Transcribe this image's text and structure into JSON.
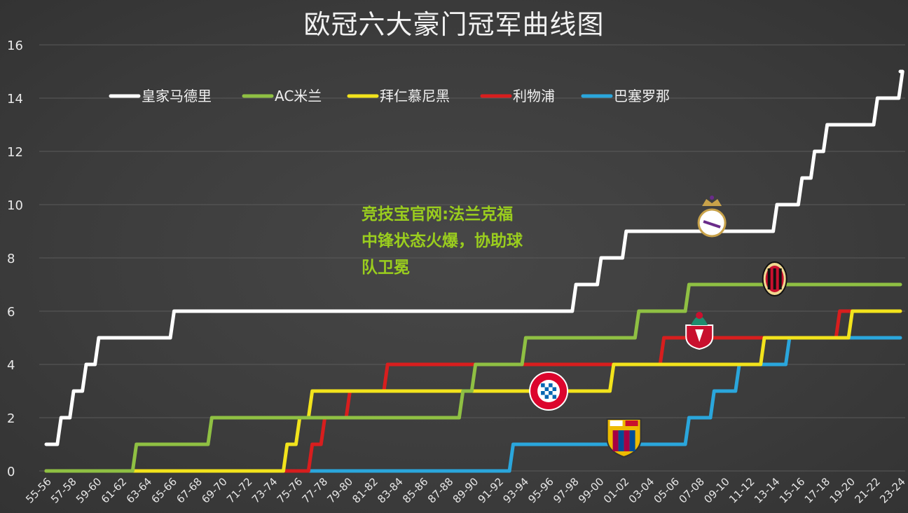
{
  "chart_data": {
    "type": "line",
    "title": "欧冠六大豪门冠军曲线图",
    "xlabel": "",
    "ylabel": "",
    "ylim": [
      0,
      16
    ],
    "yticks": [
      0,
      2,
      4,
      6,
      8,
      10,
      12,
      14,
      16
    ],
    "grid": true,
    "legend_position": "top-left",
    "x": [
      "55-56",
      "56-57",
      "57-58",
      "58-59",
      "59-60",
      "60-61",
      "61-62",
      "62-63",
      "63-64",
      "64-65",
      "65-66",
      "66-67",
      "67-68",
      "68-69",
      "69-70",
      "70-71",
      "71-72",
      "72-73",
      "73-74",
      "74-75",
      "75-76",
      "76-77",
      "77-78",
      "78-79",
      "79-80",
      "80-81",
      "81-82",
      "82-83",
      "83-84",
      "84-85",
      "85-86",
      "86-87",
      "87-88",
      "88-89",
      "89-90",
      "90-91",
      "91-92",
      "92-93",
      "93-94",
      "94-95",
      "95-96",
      "96-97",
      "97-98",
      "98-99",
      "99-00",
      "00-01",
      "01-02",
      "02-03",
      "03-04",
      "04-05",
      "05-06",
      "06-07",
      "07-08",
      "08-09",
      "09-10",
      "10-11",
      "11-12",
      "12-13",
      "13-14",
      "14-15",
      "15-16",
      "16-17",
      "17-18",
      "18-19",
      "19-20",
      "20-21",
      "21-22",
      "22-23",
      "23-24"
    ],
    "x_tick_labels": [
      "55-56",
      "57-58",
      "59-60",
      "61-62",
      "63-64",
      "65-66",
      "67-68",
      "69-70",
      "71-72",
      "73-74",
      "75-76",
      "77-78",
      "79-80",
      "81-82",
      "83-84",
      "85-86",
      "87-88",
      "89-90",
      "91-92",
      "93-94",
      "95-96",
      "97-98",
      "99-00",
      "01-02",
      "03-04",
      "05-06",
      "07-08",
      "09-10",
      "11-12",
      "13-14",
      "15-16",
      "17-18",
      "19-20",
      "21-22",
      "23-24"
    ],
    "series": [
      {
        "name": "皇家马德里",
        "color": "#ffffff",
        "values": [
          1,
          2,
          3,
          4,
          5,
          5,
          5,
          5,
          5,
          5,
          6,
          6,
          6,
          6,
          6,
          6,
          6,
          6,
          6,
          6,
          6,
          6,
          6,
          6,
          6,
          6,
          6,
          6,
          6,
          6,
          6,
          6,
          6,
          6,
          6,
          6,
          6,
          6,
          6,
          6,
          6,
          6,
          7,
          7,
          8,
          8,
          9,
          9,
          9,
          9,
          9,
          9,
          9,
          9,
          9,
          9,
          9,
          9,
          10,
          10,
          11,
          12,
          13,
          13,
          13,
          13,
          14,
          14,
          15
        ]
      },
      {
        "name": "AC米兰",
        "color": "#8fc043",
        "values": [
          0,
          0,
          0,
          0,
          0,
          0,
          0,
          1,
          1,
          1,
          1,
          1,
          1,
          2,
          2,
          2,
          2,
          2,
          2,
          2,
          2,
          2,
          2,
          2,
          2,
          2,
          2,
          2,
          2,
          2,
          2,
          2,
          2,
          3,
          4,
          4,
          4,
          4,
          5,
          5,
          5,
          5,
          5,
          5,
          5,
          5,
          5,
          6,
          6,
          6,
          6,
          7,
          7,
          7,
          7,
          7,
          7,
          7,
          7,
          7,
          7,
          7,
          7,
          7,
          7,
          7,
          7,
          7,
          7
        ]
      },
      {
        "name": "拜仁慕尼黑",
        "color": "#f2e31c",
        "values": [
          0,
          0,
          0,
          0,
          0,
          0,
          0,
          0,
          0,
          0,
          0,
          0,
          0,
          0,
          0,
          0,
          0,
          0,
          0,
          1,
          2,
          3,
          3,
          3,
          3,
          3,
          3,
          3,
          3,
          3,
          3,
          3,
          3,
          3,
          3,
          3,
          3,
          3,
          3,
          3,
          3,
          3,
          3,
          3,
          3,
          4,
          4,
          4,
          4,
          4,
          4,
          4,
          4,
          4,
          4,
          4,
          4,
          5,
          5,
          5,
          5,
          5,
          5,
          5,
          6,
          6,
          6,
          6,
          6
        ]
      },
      {
        "name": "利物浦",
        "color": "#d81e1e",
        "values": [
          0,
          0,
          0,
          0,
          0,
          0,
          0,
          0,
          0,
          0,
          0,
          0,
          0,
          0,
          0,
          0,
          0,
          0,
          0,
          0,
          0,
          1,
          2,
          2,
          3,
          3,
          3,
          4,
          4,
          4,
          4,
          4,
          4,
          4,
          4,
          4,
          4,
          4,
          4,
          4,
          4,
          4,
          4,
          4,
          4,
          4,
          4,
          4,
          4,
          5,
          5,
          5,
          5,
          5,
          5,
          5,
          5,
          5,
          5,
          5,
          5,
          5,
          5,
          6,
          6,
          6,
          6,
          6,
          6
        ]
      },
      {
        "name": "巴塞罗那",
        "color": "#2aa6dc",
        "values": [
          0,
          0,
          0,
          0,
          0,
          0,
          0,
          0,
          0,
          0,
          0,
          0,
          0,
          0,
          0,
          0,
          0,
          0,
          0,
          0,
          0,
          0,
          0,
          0,
          0,
          0,
          0,
          0,
          0,
          0,
          0,
          0,
          0,
          0,
          0,
          0,
          0,
          1,
          1,
          1,
          1,
          1,
          1,
          1,
          1,
          1,
          1,
          1,
          1,
          1,
          1,
          2,
          2,
          3,
          3,
          4,
          4,
          4,
          4,
          5,
          5,
          5,
          5,
          5,
          5,
          5,
          5,
          5,
          5
        ]
      }
    ]
  },
  "overlay": {
    "lines": [
      "竞技宝官网:法兰克福",
      "中锋状态火爆，协助球",
      "队卫冕"
    ]
  },
  "badges": [
    {
      "icon": "real-madrid-crest-icon",
      "colors": [
        "#ffffff",
        "#c8a24a",
        "#6a2c8a"
      ]
    },
    {
      "icon": "ac-milan-crest-icon",
      "colors": [
        "#c8102e",
        "#111111",
        "#f0d890"
      ]
    },
    {
      "icon": "liverpool-crest-icon",
      "colors": [
        "#c8102e",
        "#ffffff",
        "#1e8c6e"
      ]
    },
    {
      "icon": "bayern-crest-icon",
      "colors": [
        "#dc052d",
        "#0066b2",
        "#ffffff"
      ]
    },
    {
      "icon": "barcelona-crest-icon",
      "colors": [
        "#a50044",
        "#004d98",
        "#edbb00"
      ]
    }
  ]
}
